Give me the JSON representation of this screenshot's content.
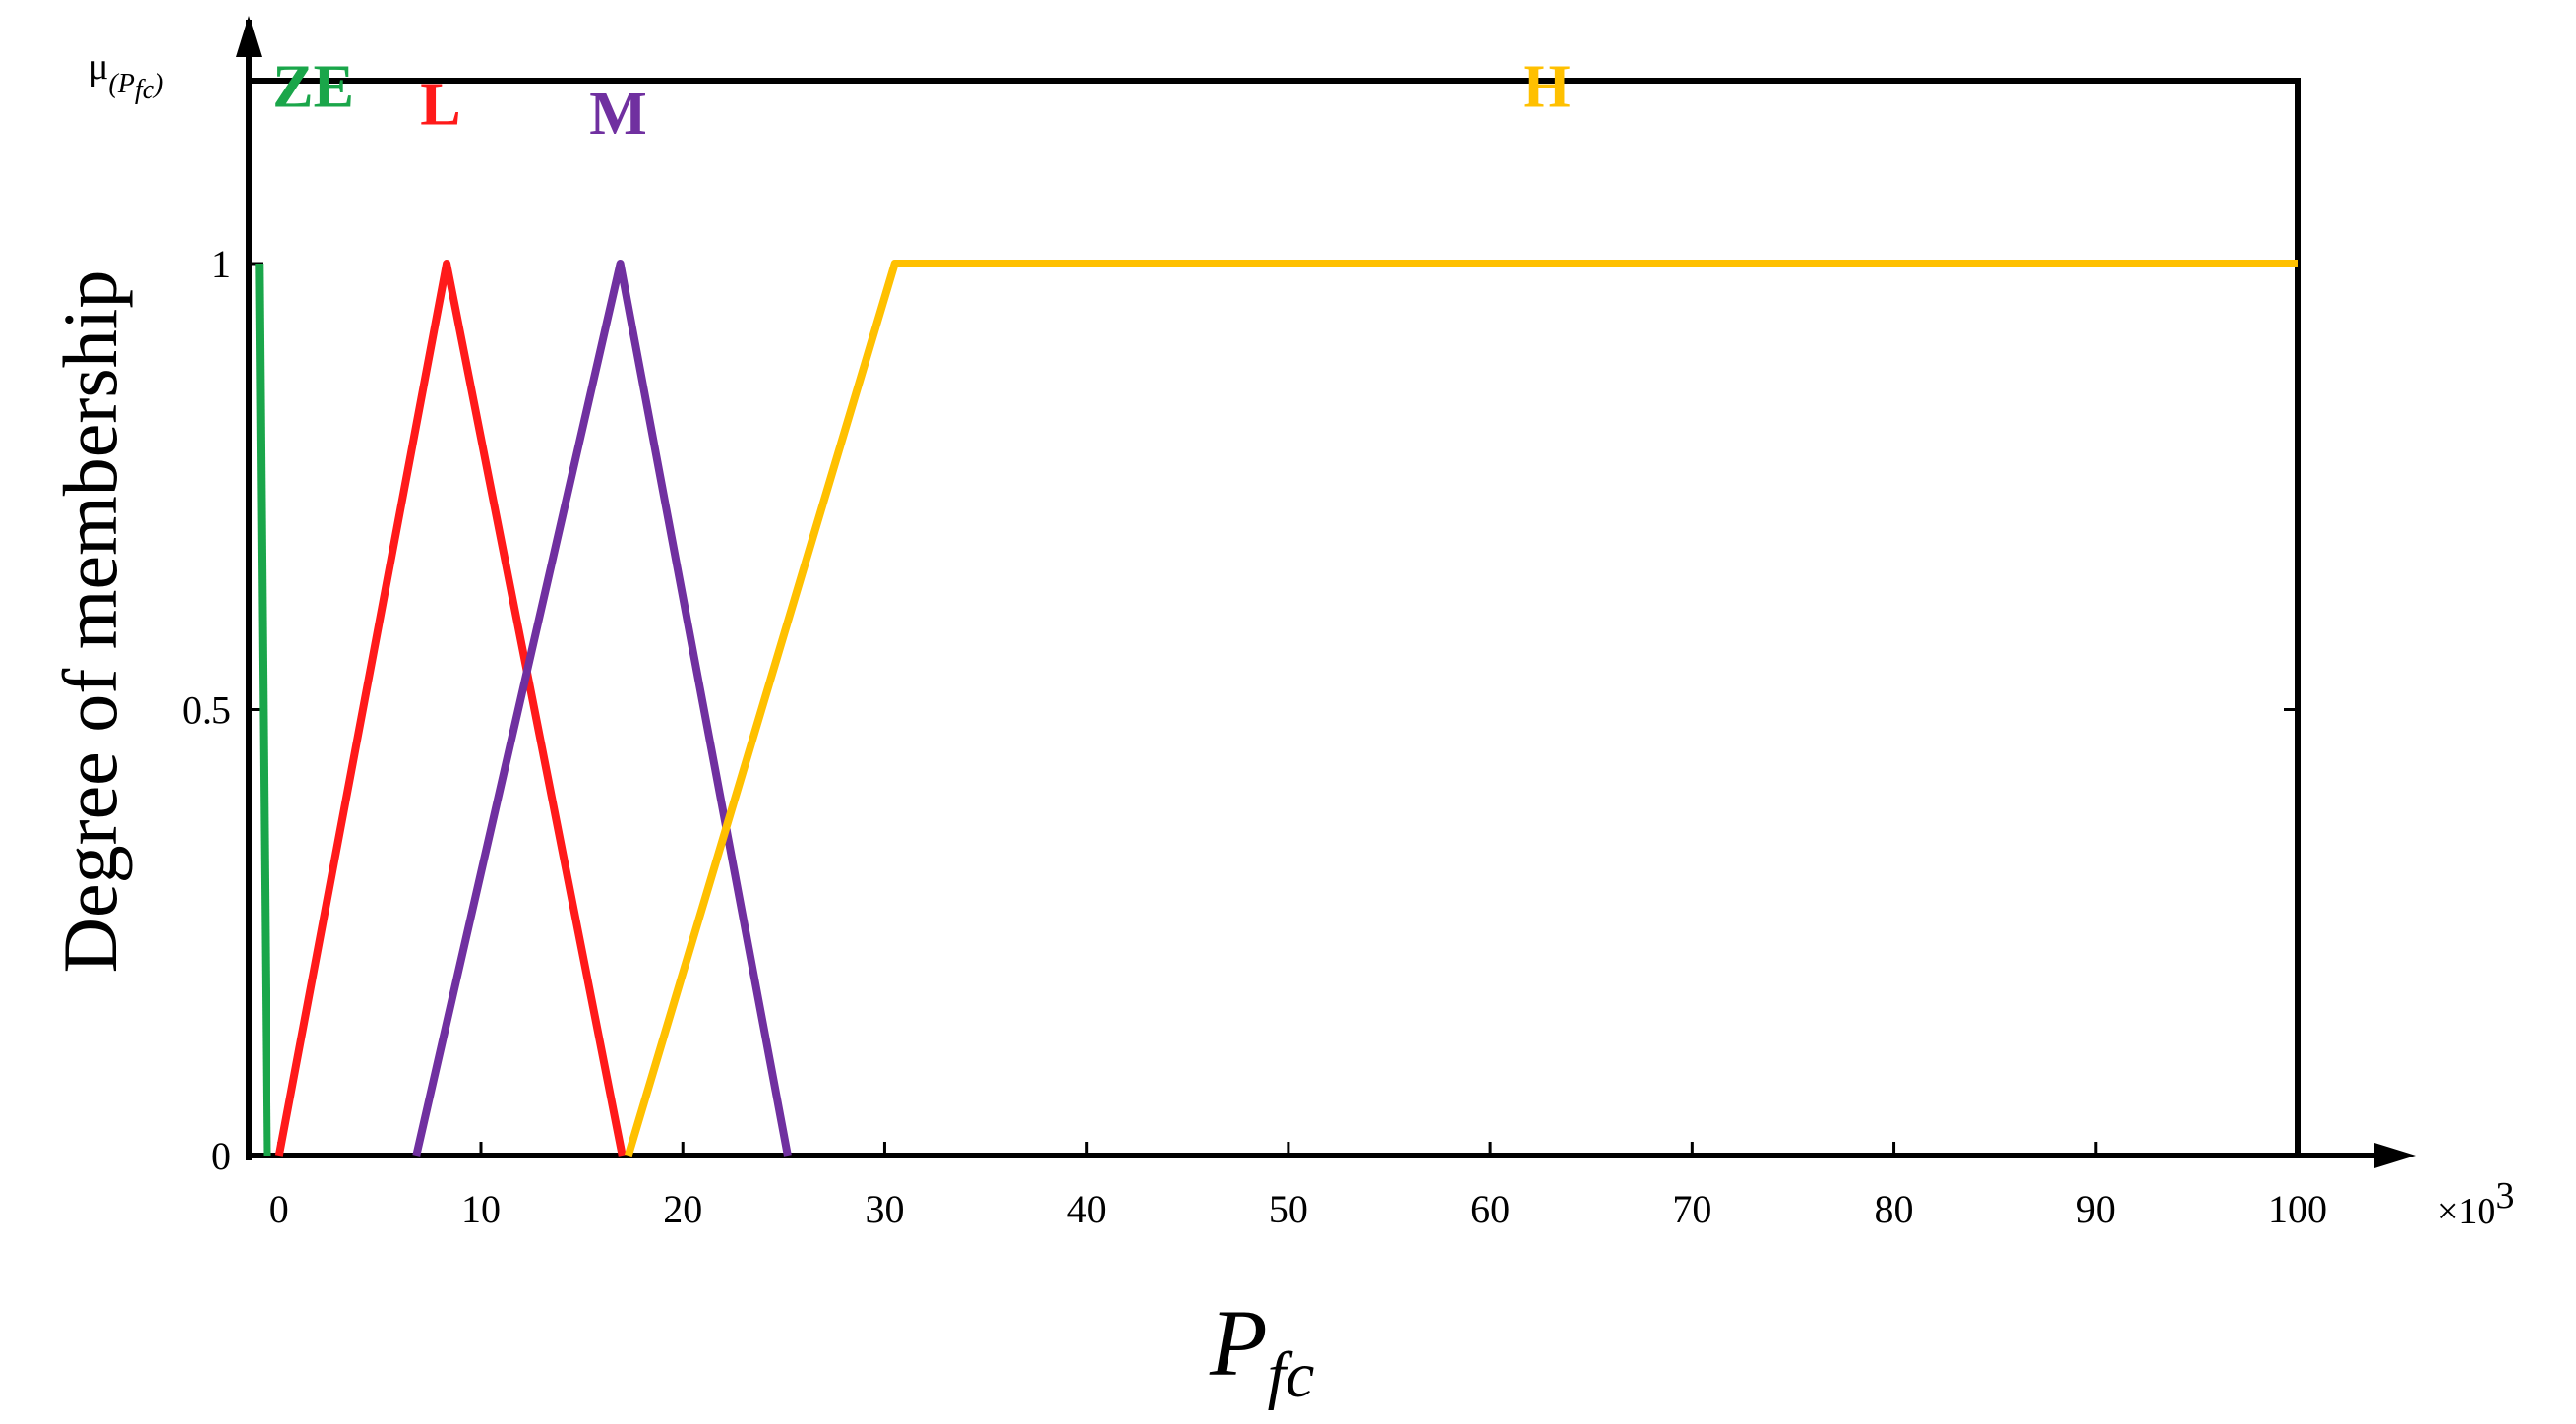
{
  "chart_data": {
    "type": "line",
    "ylabel": "Degree of membership",
    "y_axis_symbol": {
      "base": "μ",
      "subscript": "(P",
      "subscript_tail": "fc",
      "close": ")"
    },
    "xlabel": {
      "base": "P",
      "subscript": "fc"
    },
    "x_scale_note": {
      "prefix": "×10",
      "exponent": "3"
    },
    "xlim": [
      -1.5,
      100
    ],
    "ylim": [
      0,
      1.25
    ],
    "x_ticks": [
      0,
      10,
      20,
      30,
      40,
      50,
      60,
      70,
      80,
      90,
      100
    ],
    "x_tick_labels": [
      "0",
      "10",
      "20",
      "30",
      "40",
      "50",
      "60",
      "70",
      "80",
      "90",
      "100"
    ],
    "y_ticks": [
      0,
      0.5,
      1
    ],
    "y_tick_labels": [
      "0",
      "0.5",
      "1"
    ],
    "grid": false,
    "series": [
      {
        "name": "ZE",
        "color": "#1aa64a",
        "points": [
          [
            -1.0,
            1.0
          ],
          [
            -0.6,
            0.0
          ]
        ],
        "label_at": [
          1.7,
          1.2
        ]
      },
      {
        "name": "L",
        "color": "#ff1a1a",
        "points": [
          [
            0.0,
            0.0
          ],
          [
            8.3,
            1.0
          ],
          [
            17.0,
            0.0
          ]
        ],
        "label_at": [
          8.0,
          1.18
        ]
      },
      {
        "name": "M",
        "color": "#7030a0",
        "points": [
          [
            6.8,
            0.0
          ],
          [
            16.9,
            1.0
          ],
          [
            25.2,
            0.0
          ]
        ],
        "label_at": [
          16.8,
          1.17
        ]
      },
      {
        "name": "H",
        "color": "#ffc000",
        "points": [
          [
            17.3,
            0.0
          ],
          [
            30.5,
            1.0
          ],
          [
            100.0,
            1.0
          ]
        ],
        "label_at": [
          62.8,
          1.2
        ]
      }
    ]
  }
}
